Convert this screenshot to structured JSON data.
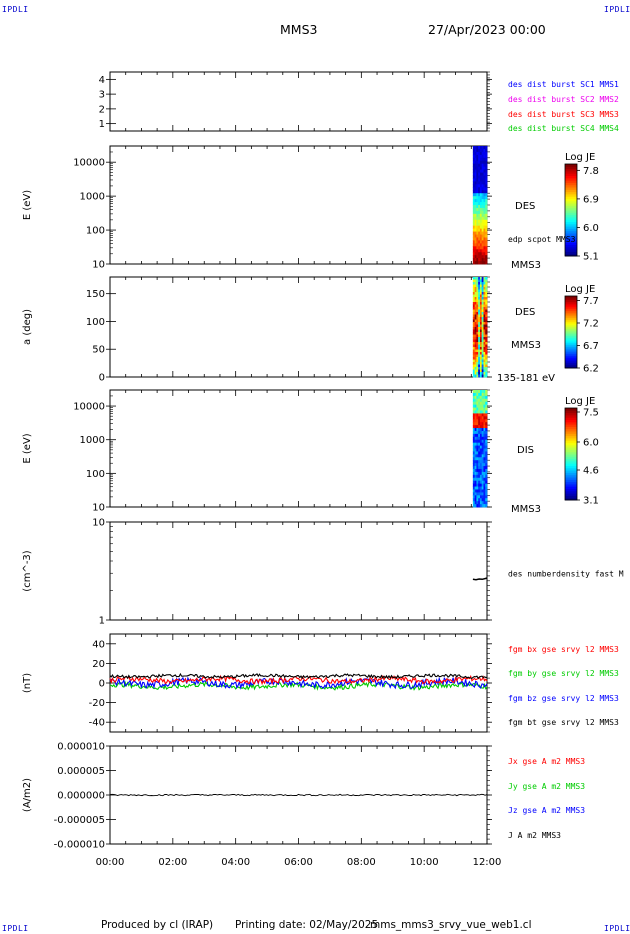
{
  "header": {
    "mission": "MMS3",
    "datetime": "27/Apr/2023 00:00"
  },
  "corners": {
    "top_left": "IPDLI",
    "top_right": "IPDLI",
    "bottom_left": "IPDLI",
    "bottom_right": "IPDLI"
  },
  "footer": {
    "produced": "Produced by cl (IRAP)",
    "printing": "Printing date: 02/May/2025",
    "script": "mms_mms3_srvy_vue_web1.cl"
  },
  "colors": {
    "blue": "#0000ff",
    "magenta": "#ee00ee",
    "red": "#ff0000",
    "green": "#00cc00",
    "black": "#000000"
  },
  "chart_data": [
    {
      "type": "line",
      "panel": "burst",
      "ylim": [
        0.5,
        4.5
      ],
      "yticks": [
        "1",
        "2",
        "3",
        "4"
      ],
      "legend": [
        {
          "text": "des dist burst SC1 MMS1",
          "color": "#0000ff"
        },
        {
          "text": "des dist burst SC2 MMS2",
          "color": "#ee00ee"
        },
        {
          "text": "des dist burst SC3 MMS3",
          "color": "#ff0000"
        },
        {
          "text": "des dist burst SC4 MMS4",
          "color": "#00cc00"
        }
      ]
    },
    {
      "type": "heatmap",
      "panel": "des-energy",
      "ylabel": "E (eV)",
      "yscale": "log",
      "ylim": [
        10,
        30000
      ],
      "yticks": [
        "10000",
        "1000",
        "100",
        "10"
      ],
      "x_data_range": [
        11.55,
        12.0
      ],
      "labels": [
        "DES",
        "edp scpot MMS3",
        "MMS3"
      ],
      "colorbar": {
        "title": "Log JE",
        "min": 5.1,
        "max": 8.0,
        "ticks": [
          "7.8",
          "6.9",
          "6.0",
          "5.1"
        ]
      }
    },
    {
      "type": "heatmap",
      "panel": "des-pitch",
      "ylabel": "a (deg)",
      "ylim": [
        0,
        180
      ],
      "yticks": [
        "150",
        "100",
        "50",
        "0"
      ],
      "x_data_range": [
        11.55,
        12.0
      ],
      "labels": [
        "DES",
        "MMS3",
        "135-181 eV"
      ],
      "colorbar": {
        "title": "Log JE",
        "min": 6.2,
        "max": 7.8,
        "ticks": [
          "7.7",
          "7.2",
          "6.7",
          "6.2"
        ]
      }
    },
    {
      "type": "heatmap",
      "panel": "dis-energy",
      "ylabel": "E (eV)",
      "yscale": "log",
      "ylim": [
        10,
        30000
      ],
      "yticks": [
        "10000",
        "1000",
        "100",
        "10"
      ],
      "x_data_range": [
        11.55,
        12.0
      ],
      "labels": [
        "DIS",
        "MMS3"
      ],
      "colorbar": {
        "title": "Log JE",
        "min": 3.1,
        "max": 7.7,
        "ticks": [
          "7.5",
          "6.0",
          "4.6",
          "3.1"
        ]
      }
    },
    {
      "type": "line",
      "panel": "density",
      "ylabel": "(cm^-3)",
      "yscale": "log",
      "ylim": [
        1,
        10
      ],
      "yticks": [
        "10",
        "1"
      ],
      "series": [
        {
          "name": "des numberdensity fast M",
          "color": "#000000",
          "x": [
            11.55,
            11.65,
            11.75,
            11.85,
            11.95,
            12.0
          ],
          "y": [
            2.6,
            2.58,
            2.62,
            2.6,
            2.65,
            2.68
          ]
        }
      ]
    },
    {
      "type": "line",
      "panel": "fgm",
      "ylabel": "(nT)",
      "ylim": [
        -50,
        50
      ],
      "yticks": [
        "40",
        "20",
        "0",
        "-20",
        "-40"
      ],
      "series": [
        {
          "name": "fgm bx gse srvy l2 MMS3",
          "color": "#ff0000",
          "mean": 3,
          "amp": 2.5
        },
        {
          "name": "fgm by gse srvy l2 MMS3",
          "color": "#00cc00",
          "mean": -3,
          "amp": 2.5
        },
        {
          "name": "fgm bz gse srvy l2 MMS3",
          "color": "#0000ff",
          "mean": 0,
          "amp": 3.5
        },
        {
          "name": "fgm bt gse srvy l2 MMS3",
          "color": "#000000",
          "mean": 7,
          "amp": 1.5
        }
      ]
    },
    {
      "type": "line",
      "panel": "current",
      "ylabel": "(A/m2)",
      "ylim": [
        -1e-05,
        1e-05
      ],
      "yticks": [
        "0.000010",
        "0.000005",
        "0.000000",
        "-0.000005",
        "-0.000010"
      ],
      "series": [
        {
          "name": "Jx gse A m2 MMS3",
          "color": "#ff0000"
        },
        {
          "name": "Jy gse A m2 MMS3",
          "color": "#00cc00"
        },
        {
          "name": "Jz gse A m2 MMS3",
          "color": "#0000ff"
        },
        {
          "name": "J A m2 MMS3",
          "color": "#000000",
          "value": 0
        }
      ]
    }
  ],
  "x_axis": {
    "ticks": [
      "00:00",
      "02:00",
      "04:00",
      "06:00",
      "08:00",
      "10:00",
      "12:00"
    ],
    "range": [
      0,
      12
    ]
  }
}
